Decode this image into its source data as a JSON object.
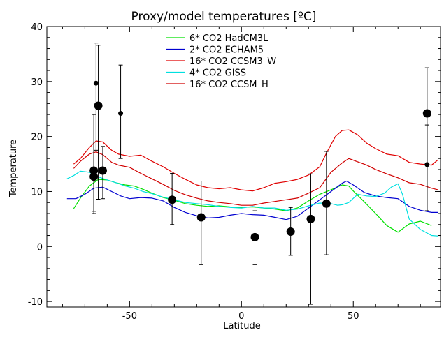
{
  "chart_data": {
    "type": "line",
    "title": "Proxy/model temperatures [ºC]",
    "xlabel": "Latitude",
    "ylabel": "Temperature",
    "xlim": [
      -87,
      89
    ],
    "ylim": [
      -11,
      40
    ],
    "xticks": [
      -50,
      0,
      50
    ],
    "yticks": [
      -10,
      0,
      10,
      20,
      30,
      40
    ],
    "legend_position": "top-center",
    "series": [
      {
        "name": "6* CO2 HadCM3L",
        "color": "#00e000",
        "x": [
          -75,
          -72,
          -68,
          -64,
          -60,
          -56,
          -52,
          -48,
          -44,
          -40,
          -35,
          -30,
          -25,
          -20,
          -15,
          -10,
          -5,
          0,
          5,
          10,
          15,
          20,
          25,
          30,
          35,
          40,
          45,
          48,
          50,
          55,
          60,
          65,
          70,
          75,
          80,
          85
        ],
        "y": [
          6.9,
          8.8,
          11.0,
          12.2,
          12.1,
          11.6,
          11.2,
          11.0,
          10.4,
          9.7,
          8.9,
          8.4,
          7.8,
          7.5,
          7.3,
          7.4,
          7.2,
          7.1,
          7.2,
          7.0,
          6.8,
          6.5,
          7.0,
          8.3,
          9.5,
          10.3,
          11.2,
          11.0,
          10.1,
          8.1,
          6.0,
          3.8,
          2.6,
          4.1,
          4.6,
          3.8
        ]
      },
      {
        "name": "2* CO2 ECHAM5",
        "color": "#0000d0",
        "x": [
          -78,
          -74,
          -70,
          -66,
          -62,
          -58,
          -54,
          -50,
          -45,
          -40,
          -35,
          -30,
          -25,
          -20,
          -15,
          -10,
          -5,
          0,
          5,
          10,
          15,
          20,
          25,
          30,
          35,
          40,
          45,
          47,
          50,
          55,
          60,
          65,
          70,
          75,
          80,
          85,
          88
        ],
        "y": [
          8.7,
          8.7,
          9.5,
          10.6,
          10.8,
          10.0,
          9.2,
          8.7,
          8.9,
          8.8,
          8.3,
          7.1,
          6.2,
          5.6,
          5.2,
          5.3,
          5.7,
          6.0,
          5.8,
          5.7,
          5.3,
          4.9,
          5.5,
          7.0,
          8.5,
          10.0,
          11.5,
          11.9,
          11.2,
          9.8,
          9.2,
          8.9,
          8.7,
          7.3,
          6.6,
          6.2,
          6.2
        ]
      },
      {
        "name": "16* CO2 CCSM3_W",
        "color": "#e00000",
        "x": [
          -75,
          -72,
          -68,
          -65,
          -62,
          -58,
          -55,
          -50,
          -45,
          -40,
          -35,
          -30,
          -25,
          -20,
          -15,
          -10,
          -5,
          0,
          5,
          10,
          15,
          20,
          25,
          30,
          35,
          38,
          42,
          45,
          48,
          52,
          56,
          60,
          65,
          70,
          75,
          80,
          85,
          88
        ],
        "y": [
          15.0,
          16.0,
          18.0,
          19.2,
          19.0,
          17.5,
          16.8,
          16.4,
          16.6,
          15.5,
          14.5,
          13.3,
          12.2,
          11.2,
          10.7,
          10.5,
          10.7,
          10.3,
          10.1,
          10.7,
          11.5,
          11.8,
          12.2,
          13.0,
          14.5,
          17.0,
          20.0,
          21.1,
          21.2,
          20.3,
          18.8,
          17.8,
          16.8,
          16.5,
          15.3,
          15.0,
          14.8,
          15.8
        ]
      },
      {
        "name": "4* CO2 GISS",
        "color": "#00e0e0",
        "x": [
          -78,
          -75,
          -72,
          -68,
          -65,
          -60,
          -56,
          -52,
          -48,
          -44,
          -40,
          -35,
          -30,
          -25,
          -20,
          -15,
          -10,
          -5,
          0,
          5,
          10,
          15,
          20,
          25,
          30,
          35,
          40,
          43,
          45,
          48,
          52,
          56,
          60,
          64,
          67,
          70,
          72,
          75,
          80,
          85,
          88
        ],
        "y": [
          12.3,
          12.9,
          13.7,
          13.5,
          12.8,
          12.1,
          11.6,
          11.0,
          10.6,
          10.0,
          9.6,
          9.0,
          8.5,
          8.0,
          7.8,
          7.6,
          7.3,
          7.1,
          7.0,
          7.3,
          7.0,
          7.0,
          6.6,
          6.8,
          7.4,
          7.9,
          7.8,
          7.5,
          7.6,
          8.0,
          9.5,
          9.2,
          9.1,
          9.7,
          10.8,
          11.4,
          9.5,
          5.0,
          3.1,
          2.0,
          1.9
        ]
      },
      {
        "name": "16* CO2 CCSM_H",
        "color": "#d00000",
        "x": [
          -75,
          -72,
          -68,
          -65,
          -62,
          -58,
          -55,
          -50,
          -45,
          -40,
          -35,
          -30,
          -25,
          -20,
          -15,
          -10,
          -5,
          0,
          5,
          10,
          15,
          20,
          25,
          30,
          35,
          40,
          45,
          48,
          52,
          56,
          60,
          65,
          70,
          75,
          80,
          85,
          88
        ],
        "y": [
          14.2,
          15.5,
          16.8,
          17.2,
          16.7,
          15.3,
          14.8,
          14.4,
          13.3,
          12.3,
          11.3,
          10.2,
          9.4,
          8.8,
          8.3,
          8.0,
          7.8,
          7.5,
          7.5,
          7.9,
          8.2,
          8.5,
          8.8,
          9.7,
          10.7,
          13.5,
          15.2,
          16.0,
          15.4,
          14.8,
          14.0,
          13.2,
          12.5,
          11.6,
          11.3,
          10.6,
          10.3
        ]
      }
    ],
    "proxies": {
      "x": [
        -66,
        -66,
        -65,
        -64,
        -62,
        -54,
        -31,
        -18,
        6,
        22,
        31,
        38,
        83,
        83
      ],
      "y": [
        12.7,
        13.8,
        29.7,
        25.6,
        13.8,
        24.2,
        8.5,
        5.3,
        1.7,
        2.7,
        5.0,
        7.8,
        24.2,
        14.9
      ],
      "yerr_low": [
        6.4,
        6.0,
        17.5,
        8.6,
        8.7,
        16.0,
        4.0,
        -3.3,
        -3.3,
        -1.6,
        -10.5,
        -1.5,
        6.5,
        6.5
      ],
      "yerr_high": [
        24.0,
        19.0,
        37.0,
        36.6,
        18.2,
        33.0,
        13.3,
        11.9,
        6.5,
        7.1,
        13.2,
        17.3,
        32.5,
        22.1
      ],
      "marker_size": [
        "large",
        "large",
        "small",
        "large",
        "large",
        "small",
        "large",
        "large",
        "large",
        "large",
        "large",
        "large",
        "large",
        "small"
      ]
    }
  }
}
